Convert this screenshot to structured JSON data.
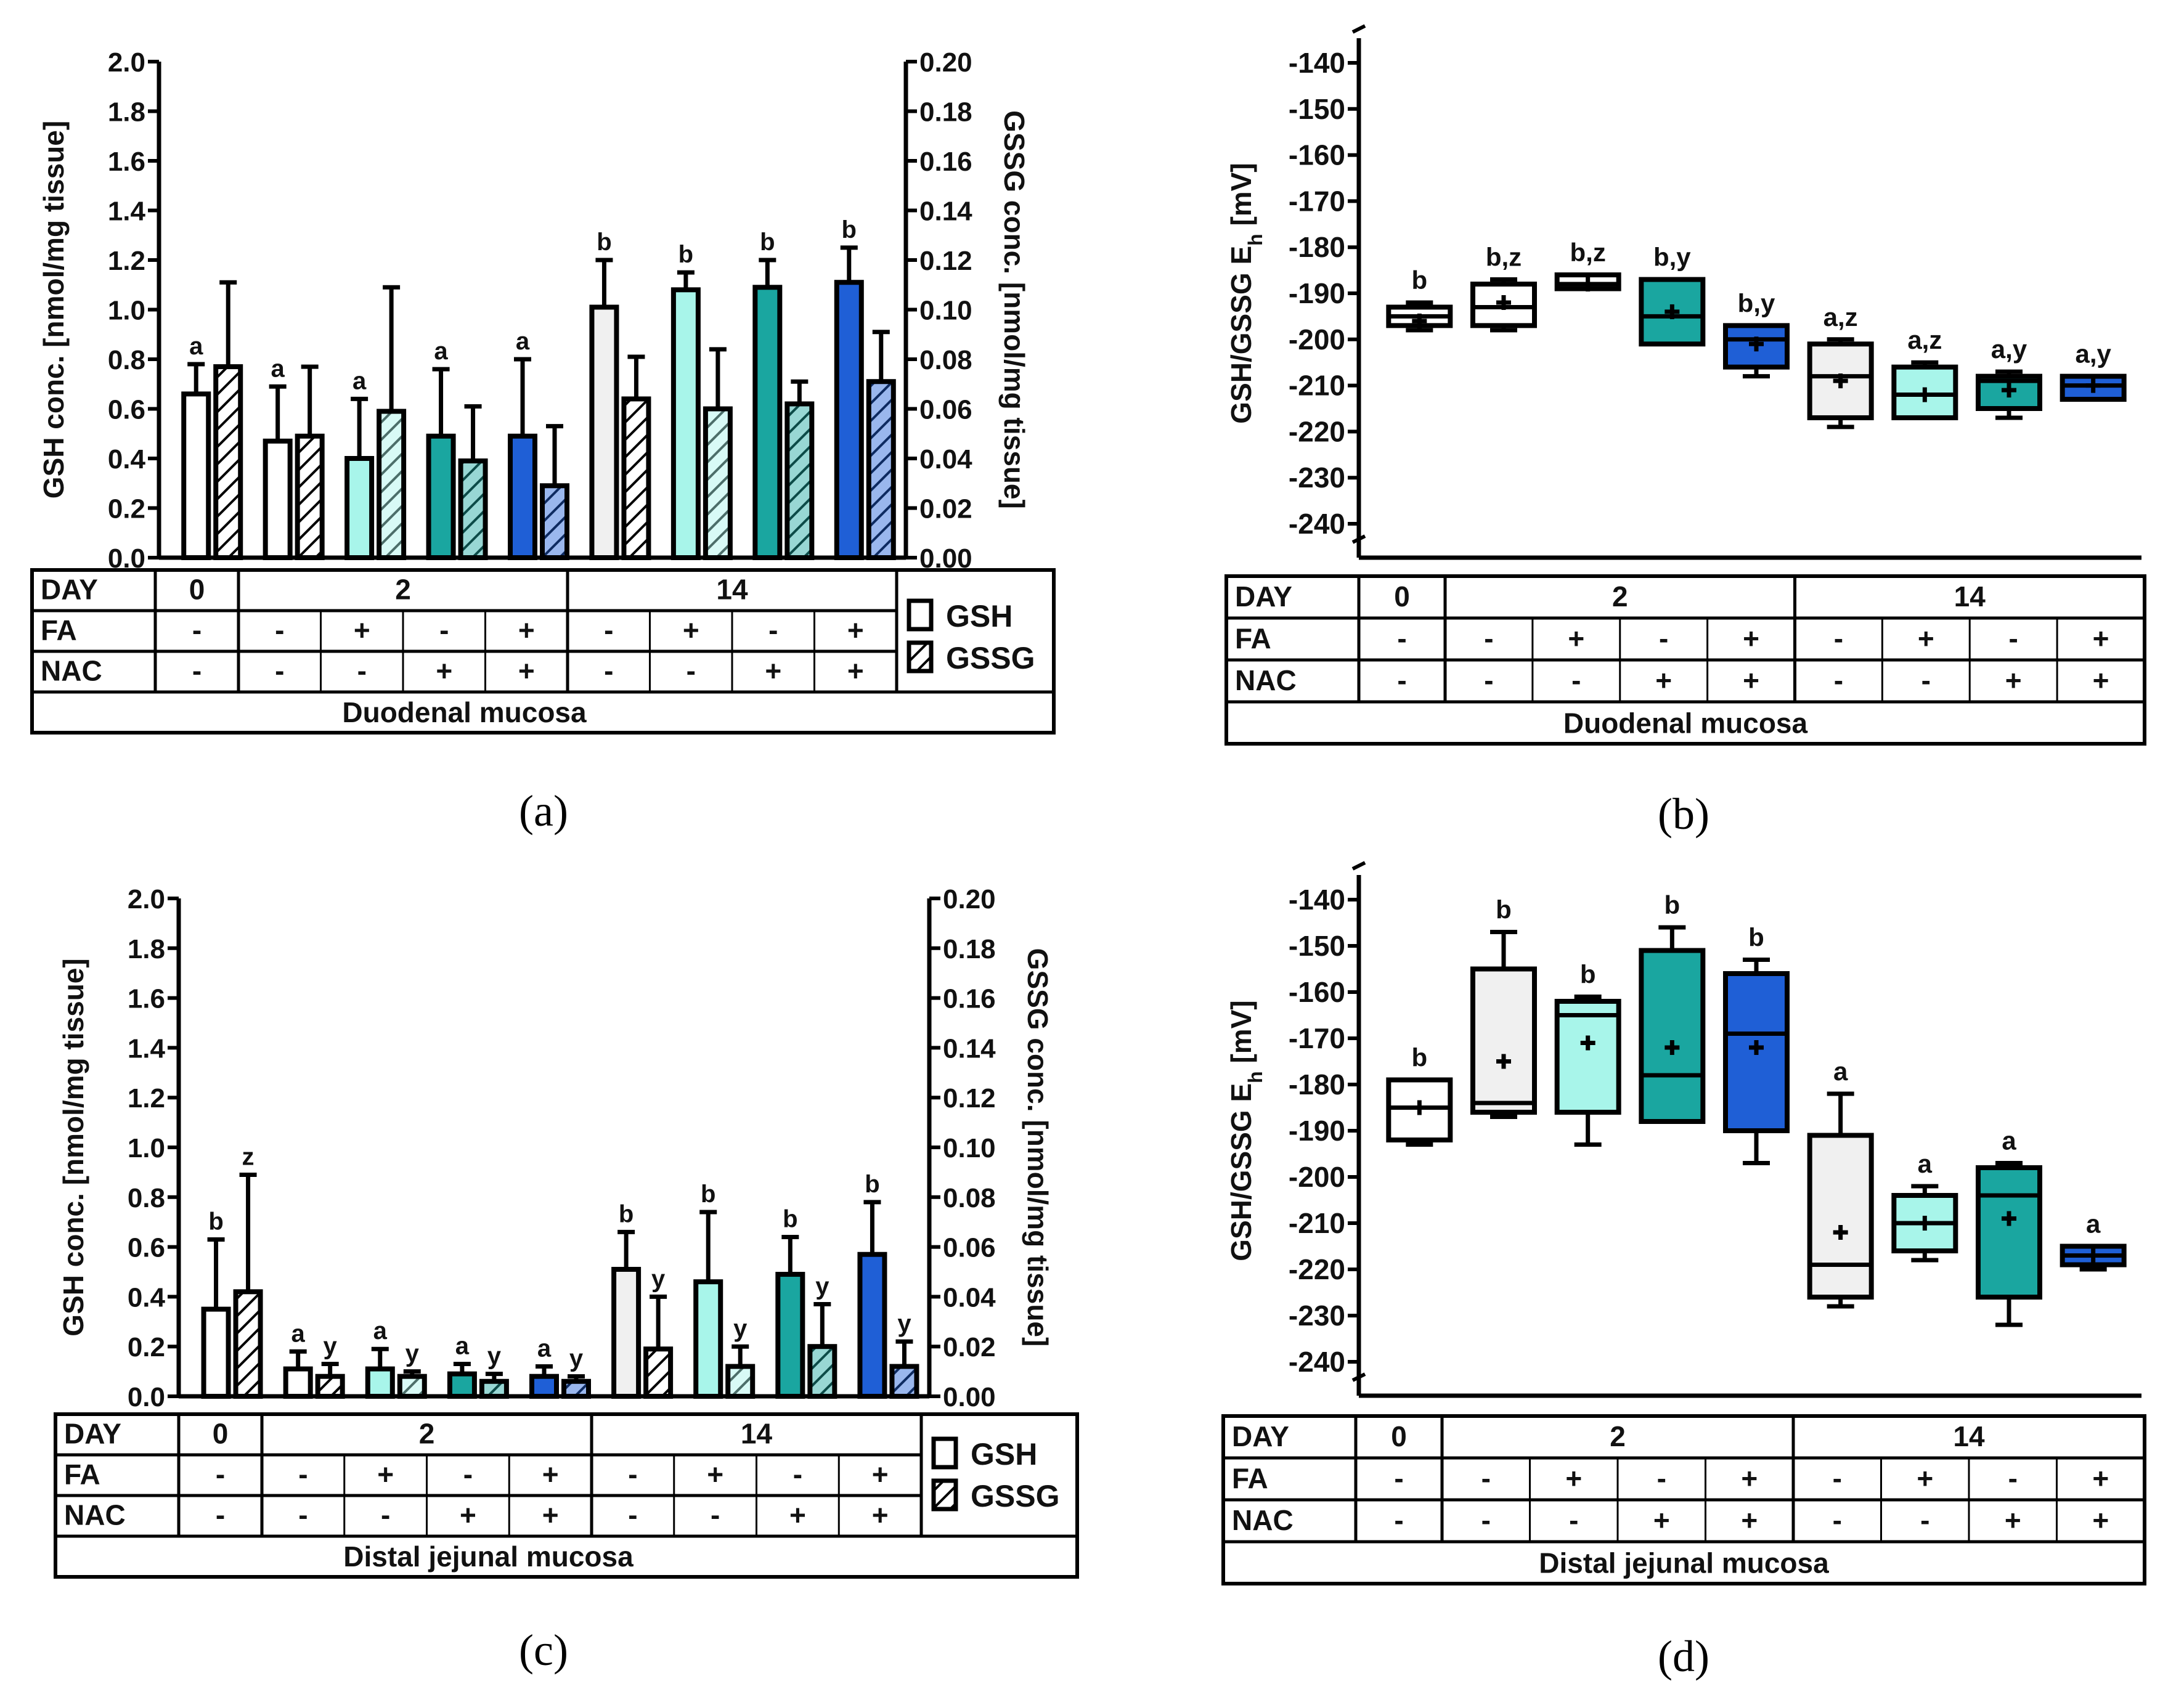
{
  "colors": {
    "group1": "#ffffff",
    "group2": "#f0f0f0",
    "group3": "#a8f5ea",
    "group4": "#1aa6a0",
    "group5": "#1f5fd6",
    "ink": "#000000"
  },
  "panels": [
    {
      "id": "a",
      "caption": "(a)",
      "tissue": "Duodenal mucosa",
      "legend": {
        "gsh": "GSH",
        "gssg": "GSSG"
      },
      "chart_data": {
        "type": "bar",
        "title": "",
        "ylabel": "GSH conc. [nmol/mg tissue]",
        "y2label": "GSSG conc. [nmol/mg tissue]",
        "ylim": [
          0,
          2.0
        ],
        "y2lim": [
          0,
          0.2
        ],
        "yticks": [
          "0.0",
          "0.2",
          "0.4",
          "0.6",
          "0.8",
          "1.0",
          "1.2",
          "1.4",
          "1.6",
          "1.8",
          "2.0"
        ],
        "y2ticks": [
          "0.00",
          "0.02",
          "0.04",
          "0.06",
          "0.08",
          "0.10",
          "0.12",
          "0.14",
          "0.16",
          "0.18",
          "0.20"
        ],
        "categories": [
          "0",
          "2 -/-",
          "2 +/-",
          "2 -/+",
          "2 +/+",
          "14 -/-",
          "14 +/-",
          "14 -/+",
          "14 +/+"
        ],
        "color_groups": [
          1,
          1,
          3,
          4,
          5,
          2,
          3,
          4,
          5
        ],
        "series": [
          {
            "name": "GSH",
            "values": [
              0.66,
              0.47,
              0.4,
              0.49,
              0.49,
              1.01,
              1.08,
              1.09,
              1.11
            ],
            "errors": [
              0.12,
              0.22,
              0.24,
              0.27,
              0.31,
              0.19,
              0.07,
              0.11,
              0.14
            ],
            "letters": [
              "a",
              "a",
              "a",
              "a",
              "a",
              "b",
              "b",
              "b",
              "b"
            ]
          },
          {
            "name": "GSSG",
            "values": [
              0.077,
              0.049,
              0.059,
              0.039,
              0.029,
              0.064,
              0.06,
              0.062,
              0.071
            ],
            "errors": [
              0.034,
              0.028,
              0.05,
              0.022,
              0.024,
              0.017,
              0.024,
              0.009,
              0.02
            ],
            "letters": [
              "",
              "",
              "",
              "",
              "",
              "",
              "",
              "",
              ""
            ]
          }
        ]
      }
    },
    {
      "id": "b",
      "caption": "(b)",
      "tissue": "Duodenal mucosa",
      "chart_data": {
        "type": "box",
        "ylabel": "GSH/GSSG E",
        "ylabel_sub": "h",
        "ylabel_unit": " [mV]",
        "ylim": [
          -240,
          -140
        ],
        "yticks": [
          "-140",
          "-150",
          "-160",
          "-170",
          "-180",
          "-190",
          "-200",
          "-210",
          "-220",
          "-230",
          "-240"
        ],
        "categories": [
          "0",
          "2 -/-",
          "2 +/-",
          "2 -/+",
          "2 +/+",
          "14 -/-",
          "14 +/-",
          "14 -/+",
          "14 +/+"
        ],
        "color_groups": [
          1,
          1,
          1,
          4,
          5,
          2,
          3,
          4,
          5
        ],
        "boxes": [
          {
            "min": -198,
            "q1": -197,
            "median": -195,
            "q3": -193,
            "max": -192,
            "mean": -196,
            "label": "b"
          },
          {
            "min": -198,
            "q1": -197,
            "median": -193,
            "q3": -188,
            "max": -187,
            "mean": -192,
            "label": "b,z"
          },
          {
            "min": -189,
            "q1": -189,
            "median": -188,
            "q3": -186,
            "max": -186,
            "mean": -188,
            "label": "b,z"
          },
          {
            "min": -201,
            "q1": -201,
            "median": -195,
            "q3": -187,
            "max": -187,
            "mean": -194,
            "label": "b,y"
          },
          {
            "min": -208,
            "q1": -206,
            "median": -200,
            "q3": -197,
            "max": -197,
            "mean": -201,
            "label": "b,y"
          },
          {
            "min": -219,
            "q1": -217,
            "median": -208,
            "q3": -201,
            "max": -200,
            "mean": -209,
            "label": "a,z"
          },
          {
            "min": -217,
            "q1": -217,
            "median": -212,
            "q3": -206,
            "max": -205,
            "mean": -212,
            "label": "a,z"
          },
          {
            "min": -217,
            "q1": -215,
            "median": -209,
            "q3": -208,
            "max": -207,
            "mean": -211,
            "label": "a,y"
          },
          {
            "min": -213,
            "q1": -213,
            "median": -210,
            "q3": -208,
            "max": -208,
            "mean": -210,
            "label": "a,y"
          }
        ]
      }
    },
    {
      "id": "c",
      "caption": "(c)",
      "tissue": "Distal jejunal mucosa",
      "legend": {
        "gsh": "GSH",
        "gssg": "GSSG"
      },
      "chart_data": {
        "type": "bar",
        "title": "",
        "ylabel": "GSH conc. [nmol/mg tissue]",
        "y2label": "GSSG conc. [nmol/mg tissue]",
        "ylim": [
          0,
          2.0
        ],
        "y2lim": [
          0,
          0.2
        ],
        "yticks": [
          "0.0",
          "0.2",
          "0.4",
          "0.6",
          "0.8",
          "1.0",
          "1.2",
          "1.4",
          "1.6",
          "1.8",
          "2.0"
        ],
        "y2ticks": [
          "0.00",
          "0.02",
          "0.04",
          "0.06",
          "0.08",
          "0.10",
          "0.12",
          "0.14",
          "0.16",
          "0.18",
          "0.20"
        ],
        "categories": [
          "0",
          "2 -/-",
          "2 +/-",
          "2 -/+",
          "2 +/+",
          "14 -/-",
          "14 +/-",
          "14 -/+",
          "14 +/+"
        ],
        "color_groups": [
          1,
          1,
          3,
          4,
          5,
          2,
          3,
          4,
          5
        ],
        "series": [
          {
            "name": "GSH",
            "values": [
              0.35,
              0.11,
              0.11,
              0.09,
              0.08,
              0.51,
              0.46,
              0.49,
              0.57
            ],
            "errors": [
              0.28,
              0.07,
              0.08,
              0.04,
              0.04,
              0.15,
              0.28,
              0.15,
              0.21
            ],
            "letters": [
              "b",
              "a",
              "a",
              "a",
              "a",
              "b",
              "b",
              "b",
              "b"
            ]
          },
          {
            "name": "GSSG",
            "values": [
              0.042,
              0.008,
              0.008,
              0.006,
              0.006,
              0.019,
              0.012,
              0.02,
              0.012
            ],
            "errors": [
              0.047,
              0.005,
              0.002,
              0.003,
              0.002,
              0.021,
              0.008,
              0.017,
              0.01
            ],
            "letters": [
              "z",
              "y",
              "y",
              "y",
              "y",
              "y",
              "y",
              "y",
              "y"
            ]
          }
        ]
      }
    },
    {
      "id": "d",
      "caption": "(d)",
      "tissue": "Distal jejunal mucosa",
      "chart_data": {
        "type": "box",
        "ylabel": "GSH/GSSG E",
        "ylabel_sub": "h",
        "ylabel_unit": " [mV]",
        "ylim": [
          -240,
          -140
        ],
        "yticks": [
          "-140",
          "-150",
          "-160",
          "-170",
          "-180",
          "-190",
          "-200",
          "-210",
          "-220",
          "-230",
          "-240"
        ],
        "categories": [
          "0",
          "2 -/-",
          "2 +/-",
          "2 -/+",
          "2 +/+",
          "14 -/-",
          "14 +/-",
          "14 -/+",
          "14 +/+"
        ],
        "color_groups": [
          1,
          2,
          3,
          4,
          5,
          2,
          3,
          4,
          5
        ],
        "boxes": [
          {
            "min": -193,
            "q1": -192,
            "median": -185,
            "q3": -179,
            "max": -179,
            "mean": -185,
            "label": "b"
          },
          {
            "min": -187,
            "q1": -186,
            "median": -184,
            "q3": -155,
            "max": -147,
            "mean": -175,
            "label": "b"
          },
          {
            "min": -193,
            "q1": -186,
            "median": -165,
            "q3": -162,
            "max": -161,
            "mean": -171,
            "label": "b"
          },
          {
            "min": -188,
            "q1": -188,
            "median": -178,
            "q3": -151,
            "max": -146,
            "mean": -172,
            "label": "b"
          },
          {
            "min": -197,
            "q1": -190,
            "median": -169,
            "q3": -156,
            "max": -153,
            "mean": -172,
            "label": "b"
          },
          {
            "min": -228,
            "q1": -226,
            "median": -219,
            "q3": -191,
            "max": -182,
            "mean": -212,
            "label": "a"
          },
          {
            "min": -218,
            "q1": -216,
            "median": -210,
            "q3": -204,
            "max": -202,
            "mean": -210,
            "label": "a"
          },
          {
            "min": -232,
            "q1": -226,
            "median": -204,
            "q3": -198,
            "max": -197,
            "mean": -209,
            "label": "a"
          },
          {
            "min": -220,
            "q1": -219,
            "median": -217,
            "q3": -215,
            "max": -215,
            "mean": -217,
            "label": "a"
          }
        ]
      }
    }
  ],
  "table": {
    "row_labels": [
      "DAY",
      "FA",
      "NAC"
    ],
    "day_groups": [
      "0",
      "2",
      "14"
    ],
    "fa": [
      "-",
      "-",
      "+",
      "-",
      "+",
      "-",
      "+",
      "-",
      "+"
    ],
    "nac": [
      "-",
      "-",
      "-",
      "+",
      "+",
      "-",
      "-",
      "+",
      "+"
    ]
  }
}
